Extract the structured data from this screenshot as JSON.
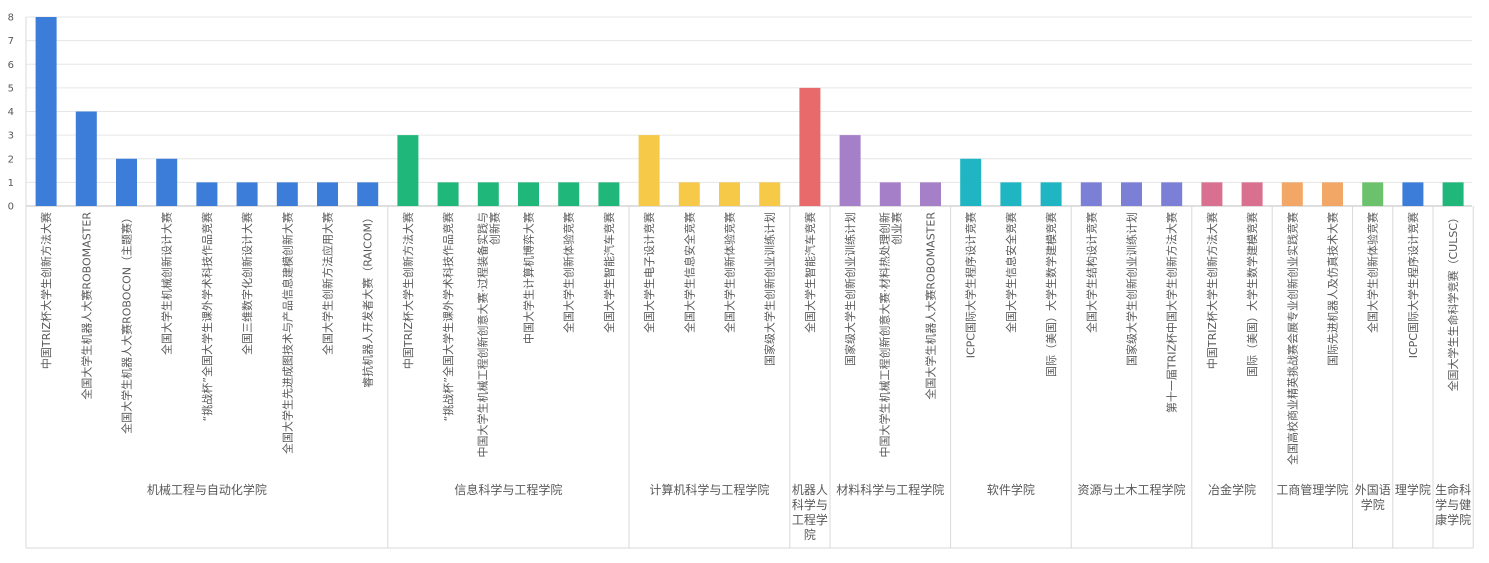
{
  "chart_data": {
    "type": "bar",
    "title": "",
    "xlabel": "",
    "ylabel": "",
    "ylim": [
      0,
      8
    ],
    "yticks": [
      0,
      1,
      2,
      3,
      4,
      5,
      6,
      7,
      8
    ],
    "grid": true,
    "legend": "none",
    "groups": [
      {
        "name": "机械工程与自动化学院",
        "color": "#3b7dd8",
        "items": [
          {
            "label": "中国TRIZ杯大学生创新方法大赛",
            "value": 8
          },
          {
            "label": "全国大学生机器人大赛ROBOMASTER",
            "value": 4
          },
          {
            "label": "全国大学生机器人大赛ROBOCON（主题赛）",
            "value": 2
          },
          {
            "label": "全国大学生机械创新设计大赛",
            "value": 2
          },
          {
            "label": "“挑战杯”全国大学生课外学术科技作品竞赛",
            "value": 1
          },
          {
            "label": "全国三维数字化创新设计大赛",
            "value": 1
          },
          {
            "label": "全国大学生先进成图技术与产品信息建模创新大赛",
            "value": 1
          },
          {
            "label": "全国大学生创新方法应用大赛",
            "value": 1
          },
          {
            "label": "睿抗机器人开发者大赛（RAICOM）",
            "value": 1
          }
        ]
      },
      {
        "name": "信息科学与工程学院",
        "color": "#20b87a",
        "items": [
          {
            "label": "中国TRIZ杯大学生创新方法大赛",
            "value": 3
          },
          {
            "label": "“挑战杯”全国大学生课外学术科技作品竞赛",
            "value": 1
          },
          {
            "label": "中国大学生机械工程创新创意大赛·过程装备实践与创新赛",
            "value": 1
          },
          {
            "label": "中国大学生计算机博弈大赛",
            "value": 1
          },
          {
            "label": "全国大学生创新体验竞赛",
            "value": 1
          },
          {
            "label": "全国大学生智能汽车竞赛",
            "value": 1
          }
        ]
      },
      {
        "name": "计算机科学与工程学院",
        "color": "#f7c948",
        "items": [
          {
            "label": "全国大学生电子设计竞赛",
            "value": 3
          },
          {
            "label": "全国大学生信息安全竞赛",
            "value": 1
          },
          {
            "label": "全国大学生创新体验竞赛",
            "value": 1
          },
          {
            "label": "国家级大学生创新创业训练计划",
            "value": 1
          }
        ]
      },
      {
        "name": "机器人科学与工程学院",
        "color": "#e86a6a",
        "items": [
          {
            "label": "全国大学生智能汽车竞赛",
            "value": 5
          }
        ]
      },
      {
        "name": "材料科学与工程学院",
        "color": "#a67fc9",
        "items": [
          {
            "label": "国家级大学生创新创业训练计划",
            "value": 3
          },
          {
            "label": "中国大学生机械工程创新创意大赛·材料热处理创新创业赛",
            "value": 1
          },
          {
            "label": "全国大学生机器人大赛ROBOMASTER",
            "value": 1
          }
        ]
      },
      {
        "name": "软件学院",
        "color": "#1fb5c2",
        "items": [
          {
            "label": "ICPC国际大学生程序设计竞赛",
            "value": 2
          },
          {
            "label": "全国大学生信息安全竞赛",
            "value": 1
          },
          {
            "label": "国际（美国）大学生数学建模竞赛",
            "value": 1
          }
        ]
      },
      {
        "name": "资源与土木工程学院",
        "color": "#7b7fd6",
        "items": [
          {
            "label": "全国大学生结构设计竞赛",
            "value": 1
          },
          {
            "label": "国家级大学生创新创业训练计划",
            "value": 1
          },
          {
            "label": "第十一届TRIZ杯中国大学生创新方法大赛",
            "value": 1
          }
        ]
      },
      {
        "name": "冶金学院",
        "color": "#d9708f",
        "items": [
          {
            "label": "中国TRIZ杯大学生创新方法大赛",
            "value": 1
          },
          {
            "label": "国际（美国）大学生数学建模竞赛",
            "value": 1
          }
        ]
      },
      {
        "name": "工商管理学院",
        "color": "#f2a766",
        "items": [
          {
            "label": "全国高校商业精英挑战赛会展专业创新创业实践竞赛",
            "value": 1
          },
          {
            "label": "国际先进机器人及仿真技术大赛",
            "value": 1
          }
        ]
      },
      {
        "name": "外国语学院",
        "color": "#6cc26c",
        "items": [
          {
            "label": "全国大学生创新体验竞赛",
            "value": 1
          }
        ]
      },
      {
        "name": "理学院",
        "color": "#3b7dd8",
        "items": [
          {
            "label": "ICPC国际大学生程序设计竞赛",
            "value": 1
          }
        ]
      },
      {
        "name": "生命科学与健康学院",
        "color": "#20b87a",
        "items": [
          {
            "label": "全国大学生生命科学竞赛（CULSC）",
            "value": 1
          }
        ]
      }
    ]
  }
}
